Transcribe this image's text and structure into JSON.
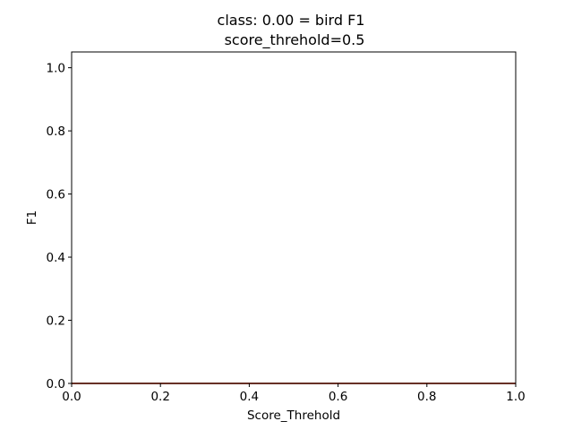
{
  "chart_data": {
    "type": "line",
    "title": "class: 0.00 = bird F1",
    "subtitle": "score_threhold=0.5",
    "xlabel": "Score_Threhold",
    "ylabel": "F1",
    "xlim": [
      0.0,
      1.0
    ],
    "ylim": [
      0.0,
      1.05
    ],
    "xticks": [
      "0.0",
      "0.2",
      "0.4",
      "0.6",
      "0.8",
      "1.0"
    ],
    "yticks": [
      "0.0",
      "0.2",
      "0.4",
      "0.6",
      "0.8",
      "1.0"
    ],
    "grid": false,
    "series": [
      {
        "color": "#1f77b4",
        "x": [
          0.0,
          1.0
        ],
        "y": [
          0.0,
          0.0
        ]
      },
      {
        "color": "#ff7f0e",
        "x": [
          0.0,
          1.0
        ],
        "y": [
          0.0,
          0.0
        ]
      },
      {
        "color": "#d62728",
        "x": [
          0.0,
          1.0
        ],
        "y": [
          0.0,
          0.0
        ]
      }
    ]
  }
}
